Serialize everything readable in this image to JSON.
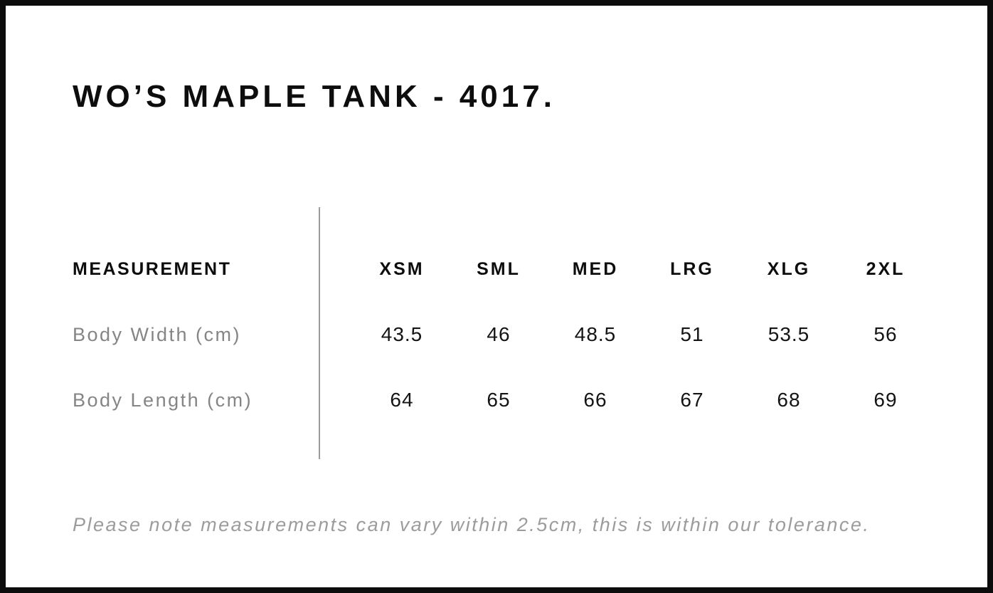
{
  "page": {
    "title": "WO’S MAPLE TANK - 4017.",
    "note": "Please note measurements can vary within 2.5cm, this is within our tolerance."
  },
  "table": {
    "header_label": "MEASUREMENT",
    "sizes": [
      "XSM",
      "SML",
      "MED",
      "LRG",
      "XLG",
      "2XL"
    ],
    "rows": [
      {
        "label": "Body Width (cm)",
        "values": [
          "43.5",
          "46",
          "48.5",
          "51",
          "53.5",
          "56"
        ]
      },
      {
        "label": "Body Length (cm)",
        "values": [
          "64",
          "65",
          "66",
          "67",
          "68",
          "69"
        ]
      }
    ]
  },
  "colors": {
    "border": "#0c0c0c",
    "heading_text": "#0d0d0d",
    "value_text": "#141414",
    "muted_text": "#858585",
    "note_text": "#9c9c9c",
    "divider": "#9b9b9b",
    "background": "#ffffff"
  }
}
